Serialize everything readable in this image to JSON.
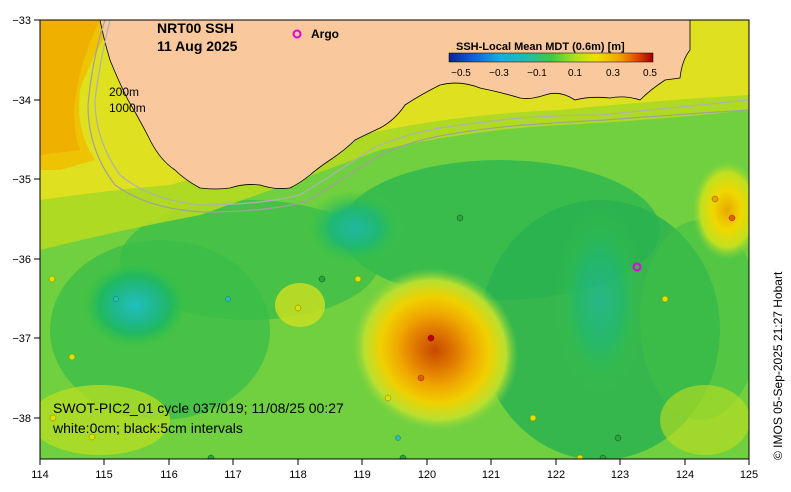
{
  "map": {
    "title_line1": "NRT00 SSH",
    "title_line2": "11 Aug 2025",
    "legend_marker_label": "Argo",
    "legend_marker_color": "#e000e0",
    "depth_label_1": "200m",
    "depth_label_2": "1000m",
    "colorbar": {
      "title": "SSH-Local Mean MDT (0.6m) [m]",
      "tick_labels": [
        "−0.5",
        "−0.3",
        "−0.1",
        "0.1",
        "0.3",
        "0.5"
      ]
    },
    "caption_line1": "SWOT-PIC2_01 cycle 037/019; 11/08/25 00:27",
    "caption_line2": "white:0cm; black:5cm intervals",
    "credit": "© IMOS 05-Sep-2025 21:27 Hobart",
    "x_axis": {
      "ticks": [
        "114",
        "115",
        "116",
        "117",
        "118",
        "119",
        "120",
        "121",
        "122",
        "123",
        "124",
        "125"
      ]
    },
    "y_axis": {
      "ticks": [
        "−33",
        "−34",
        "−35",
        "−36",
        "−37",
        "−38"
      ]
    },
    "colors": {
      "land": "#f9c89c",
      "ssh_low": "#00a0b0",
      "ssh_mid": "#3cc43c",
      "ssh_high": "#e08000",
      "ssh_peak": "#c04000"
    }
  }
}
